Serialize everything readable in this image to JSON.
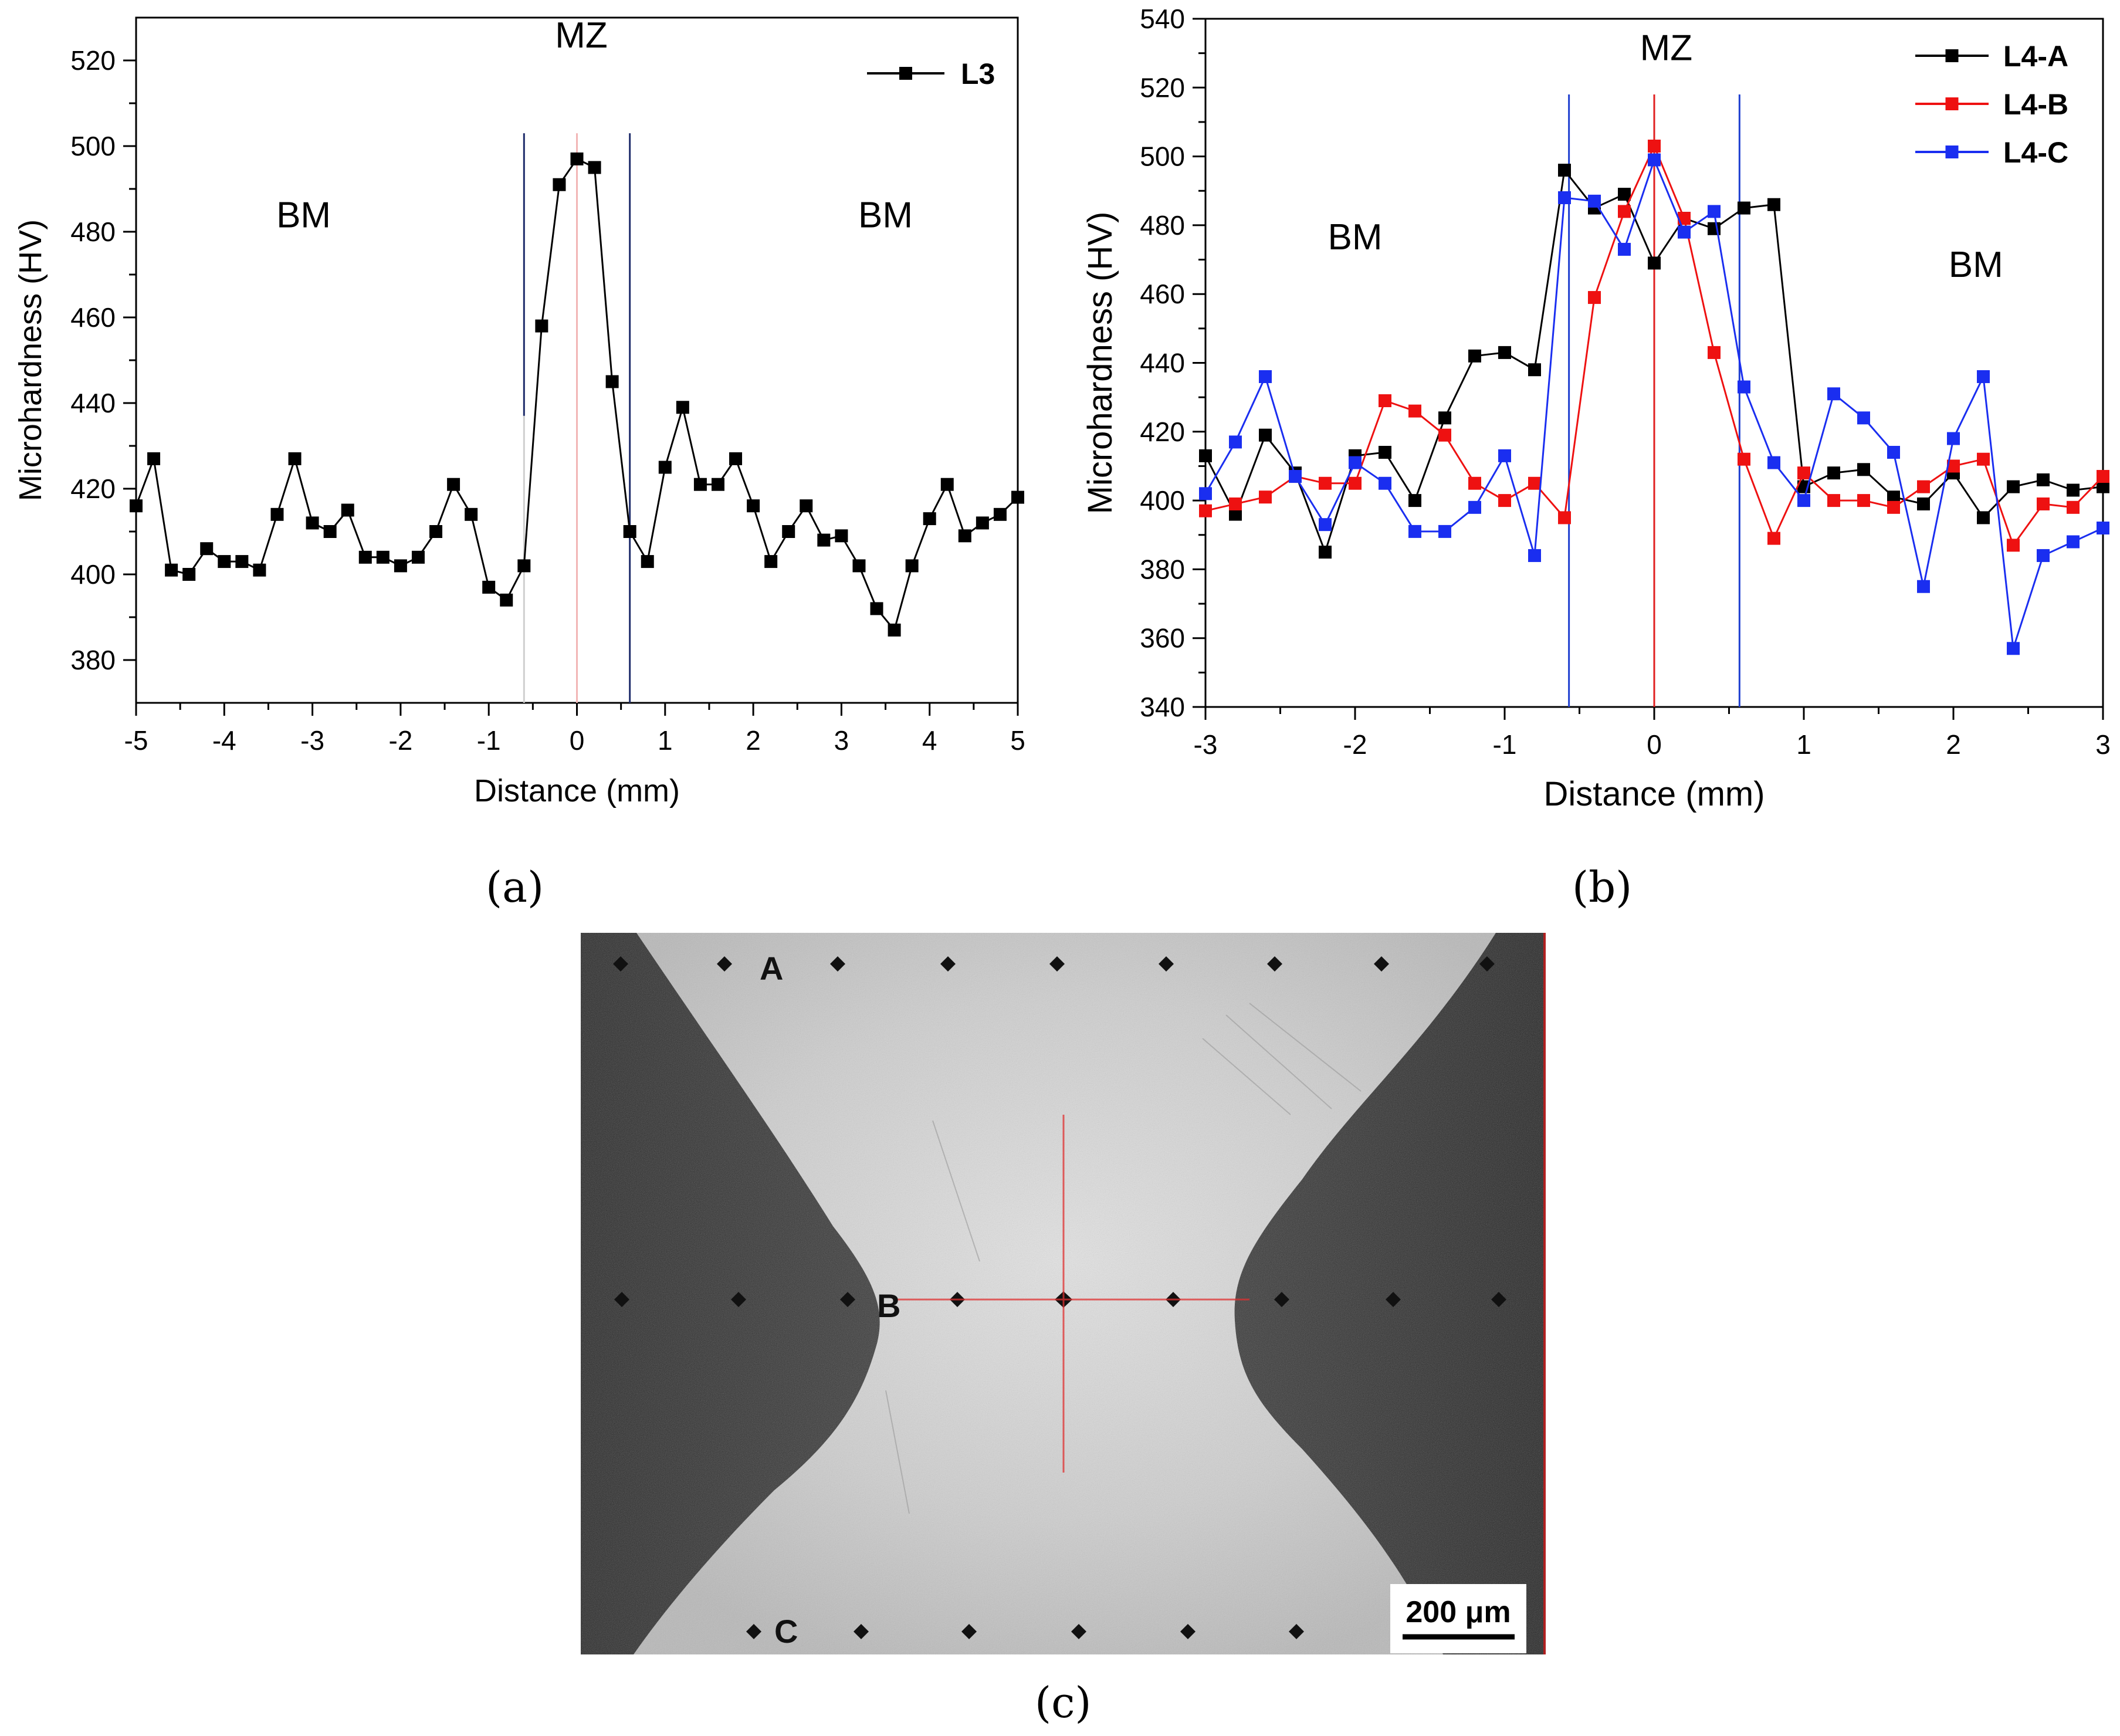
{
  "panels": {
    "a": "(a)",
    "b": "(b)",
    "c": "(c)"
  },
  "chart_data": [
    {
      "type": "line",
      "panel": "a",
      "xlabel": "Distance (mm)",
      "ylabel": "Microhardness (HV)",
      "xlim": [
        -5,
        5
      ],
      "ylim": [
        370,
        530
      ],
      "xticks": [
        -5,
        -4,
        -3,
        -2,
        -1,
        0,
        1,
        2,
        3,
        4,
        5
      ],
      "yticks": [
        380,
        400,
        420,
        440,
        460,
        480,
        500,
        520
      ],
      "grid": false,
      "legend": "top-right",
      "annotations": [
        {
          "text": "MZ",
          "x": 0.05,
          "y": 523
        },
        {
          "text": "BM",
          "x": -3.1,
          "y": 481
        },
        {
          "text": "BM",
          "x": 3.5,
          "y": 481
        }
      ],
      "guides": [
        {
          "x": -0.6,
          "color": "#1f2d6b",
          "from": 437,
          "to": 503
        },
        {
          "x": -0.6,
          "color": "#d0d0d0",
          "from": 370,
          "to": 437
        },
        {
          "x": 0,
          "color": "#f2b6b6",
          "from": 370,
          "to": 503
        },
        {
          "x": 0.6,
          "color": "#1f2d6b",
          "from": 370,
          "to": 503
        }
      ],
      "series": [
        {
          "name": "L3",
          "color": "#000000",
          "x": [
            -5,
            -4.8,
            -4.6,
            -4.4,
            -4.2,
            -4.0,
            -3.8,
            -3.6,
            -3.4,
            -3.2,
            -3.0,
            -2.8,
            -2.6,
            -2.4,
            -2.2,
            -2.0,
            -1.8,
            -1.6,
            -1.4,
            -1.2,
            -1.0,
            -0.8,
            -0.6,
            -0.4,
            -0.2,
            0.0,
            0.2,
            0.4,
            0.6,
            0.8,
            1.0,
            1.2,
            1.4,
            1.6,
            1.8,
            2.0,
            2.2,
            2.4,
            2.6,
            2.8,
            3.0,
            3.2,
            3.4,
            3.6,
            3.8,
            4.0,
            4.2,
            4.4,
            4.6,
            4.8,
            5.0
          ],
          "y": [
            416,
            427,
            401,
            400,
            406,
            403,
            403,
            401,
            414,
            427,
            412,
            410,
            415,
            404,
            404,
            402,
            404,
            410,
            421,
            414,
            397,
            394,
            402,
            458,
            491,
            497,
            495,
            445,
            410,
            403,
            425,
            439,
            421,
            421,
            427,
            416,
            403,
            410,
            416,
            408,
            409,
            402,
            392,
            387,
            402,
            413,
            421,
            409,
            412,
            414,
            418
          ]
        }
      ]
    },
    {
      "type": "line",
      "panel": "b",
      "xlabel": "Distance (mm)",
      "ylabel": "Microhardness (HV)",
      "xlim": [
        -3,
        3
      ],
      "ylim": [
        340,
        540
      ],
      "xticks": [
        -3,
        -2,
        -1,
        0,
        1,
        2,
        3
      ],
      "yticks": [
        340,
        360,
        380,
        400,
        420,
        440,
        460,
        480,
        500,
        520,
        540
      ],
      "grid": false,
      "legend": "top-right",
      "annotations": [
        {
          "text": "MZ",
          "x": 0.08,
          "y": 528
        },
        {
          "text": "BM",
          "x": -2.0,
          "y": 473
        },
        {
          "text": "BM",
          "x": 2.15,
          "y": 465
        }
      ],
      "guides": [
        {
          "x": -0.57,
          "color": "#1f3fd0",
          "from": 340,
          "to": 518
        },
        {
          "x": 0,
          "color": "#e02020",
          "from": 340,
          "to": 518
        },
        {
          "x": 0.57,
          "color": "#1f3fd0",
          "from": 340,
          "to": 518
        }
      ],
      "series": [
        {
          "name": "L4-A",
          "color": "#000000",
          "x": [
            -3.0,
            -2.8,
            -2.6,
            -2.4,
            -2.2,
            -2.0,
            -1.8,
            -1.6,
            -1.4,
            -1.2,
            -1.0,
            -0.8,
            -0.6,
            -0.4,
            -0.2,
            0.0,
            0.2,
            0.4,
            0.6,
            0.8,
            1.0,
            1.2,
            1.4,
            1.6,
            1.8,
            2.0,
            2.2,
            2.4,
            2.6,
            2.8,
            3.0
          ],
          "y": [
            413,
            396,
            419,
            408,
            385,
            413,
            414,
            400,
            424,
            442,
            443,
            438,
            496,
            485,
            489,
            469,
            482,
            479,
            485,
            486,
            404,
            408,
            409,
            401,
            399,
            408,
            395,
            404,
            406,
            403,
            404
          ]
        },
        {
          "name": "L4-B",
          "color": "#ee1111",
          "x": [
            -3.0,
            -2.8,
            -2.6,
            -2.4,
            -2.2,
            -2.0,
            -1.8,
            -1.6,
            -1.4,
            -1.2,
            -1.0,
            -0.8,
            -0.6,
            -0.4,
            -0.2,
            0.0,
            0.2,
            0.4,
            0.6,
            0.8,
            1.0,
            1.2,
            1.4,
            1.6,
            1.8,
            2.0,
            2.2,
            2.4,
            2.6,
            2.8,
            3.0
          ],
          "y": [
            397,
            399,
            401,
            407,
            405,
            405,
            429,
            426,
            419,
            405,
            400,
            405,
            395,
            459,
            484,
            503,
            482,
            443,
            412,
            389,
            408,
            400,
            400,
            398,
            404,
            410,
            412,
            387,
            399,
            398,
            407
          ]
        },
        {
          "name": "L4-C",
          "color": "#1a2ef0",
          "x": [
            -3.0,
            -2.8,
            -2.6,
            -2.4,
            -2.2,
            -2.0,
            -1.8,
            -1.6,
            -1.4,
            -1.2,
            -1.0,
            -0.8,
            -0.6,
            -0.4,
            -0.2,
            0.0,
            0.2,
            0.4,
            0.6,
            0.8,
            1.0,
            1.2,
            1.4,
            1.6,
            1.8,
            2.0,
            2.2,
            2.4,
            2.6,
            2.8,
            3.0
          ],
          "y": [
            402,
            417,
            436,
            407,
            393,
            411,
            405,
            391,
            391,
            398,
            413,
            384,
            488,
            487,
            473,
            499,
            478,
            484,
            433,
            411,
            400,
            431,
            424,
            414,
            375,
            418,
            436,
            357,
            384,
            388,
            392
          ]
        }
      ]
    }
  ],
  "micrograph": {
    "labels": {
      "a": "A",
      "b": "B",
      "c": "C"
    },
    "scale_bar": "200 μm"
  }
}
